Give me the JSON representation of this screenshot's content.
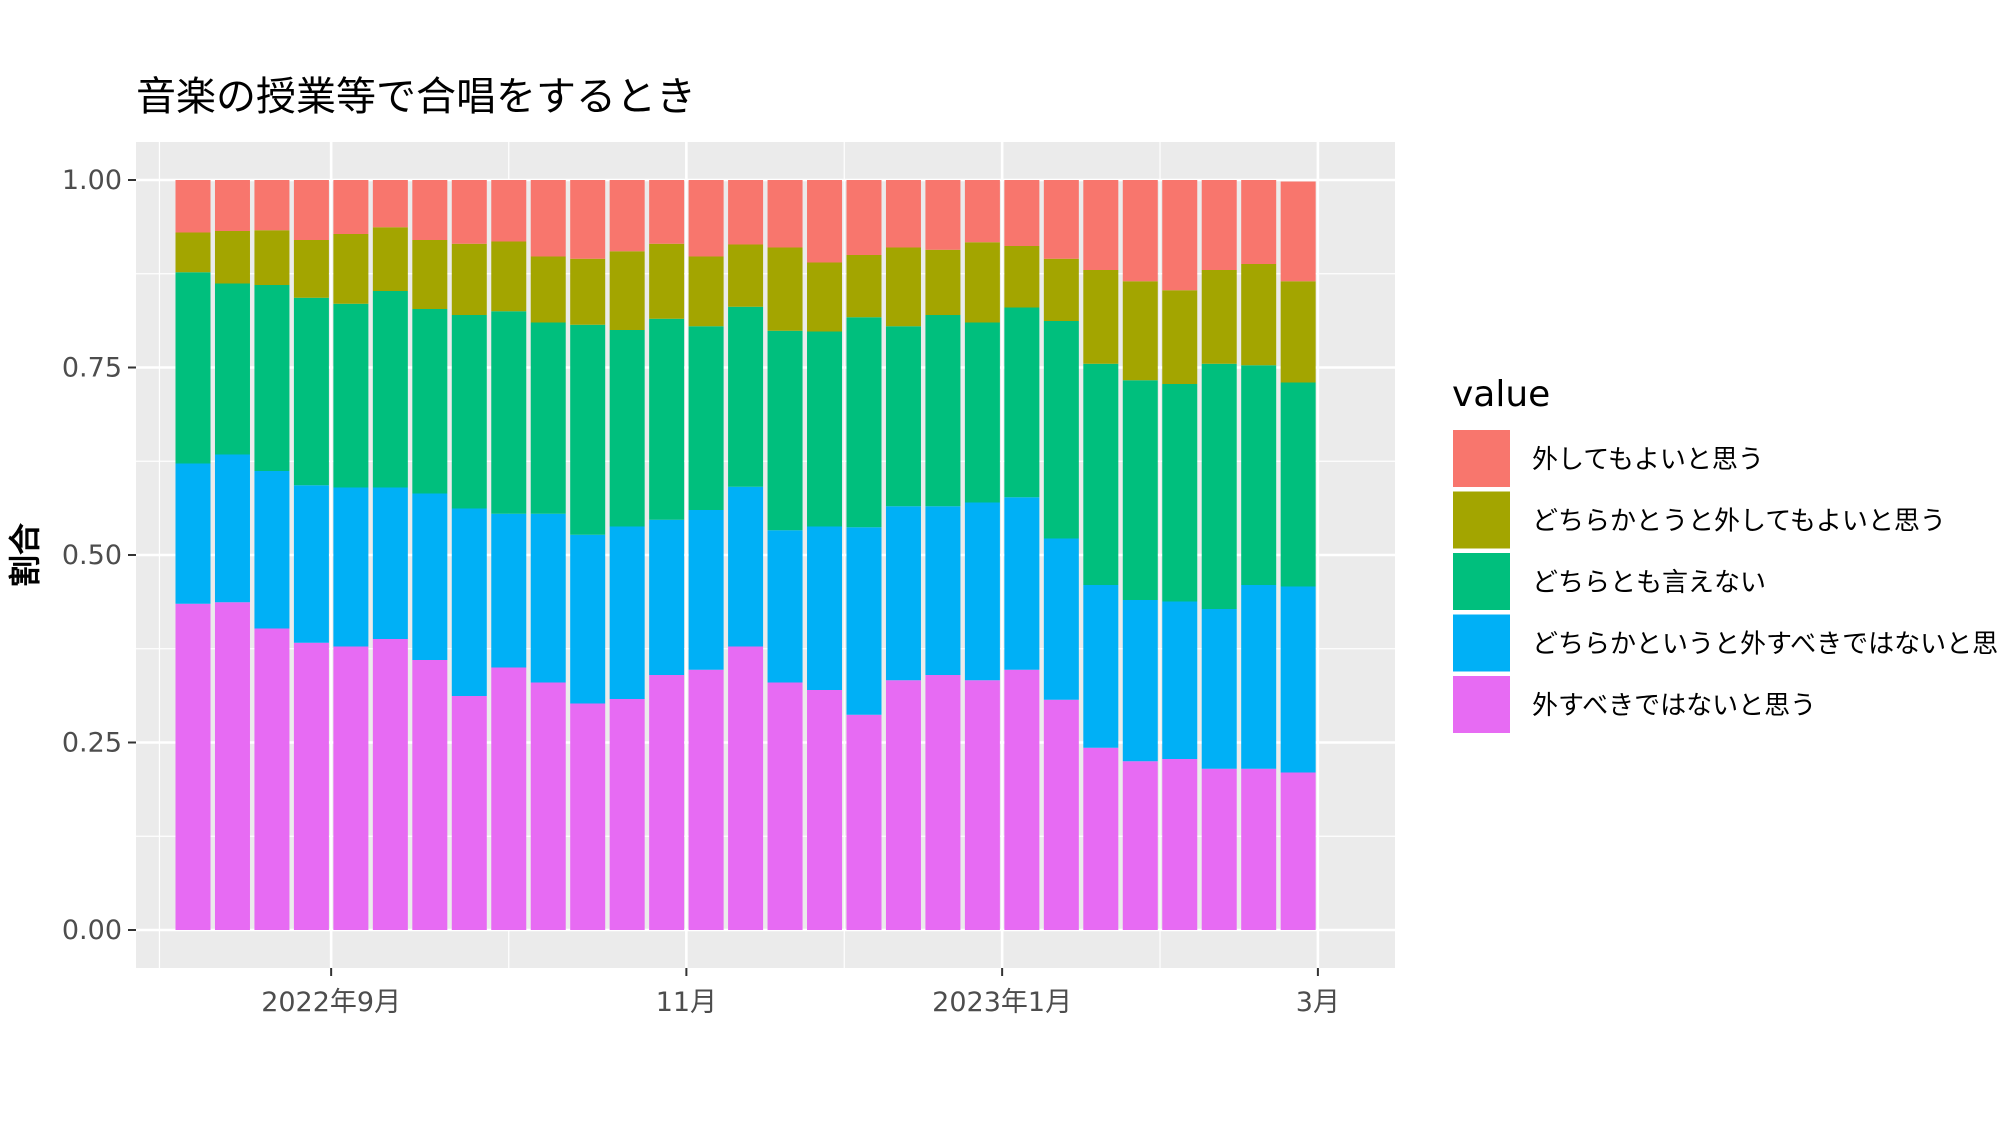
{
  "chart_data": {
    "type": "bar",
    "stacked": true,
    "title": "音楽の授業等で合唱をするとき",
    "xlabel": "",
    "ylabel": "割合",
    "ylim": [
      0,
      1
    ],
    "y_ticks": [
      "0.00",
      "0.25",
      "0.50",
      "0.75",
      "1.00"
    ],
    "x_tick_labels": [
      "2022年9月",
      "11月",
      "2023年1月",
      "3月"
    ],
    "x_tick_bar_index": [
      3.5,
      12.5,
      20.5,
      28.5
    ],
    "x_minor_bar_index": [
      -0.85,
      8,
      16.5,
      24.5
    ],
    "legend_title": "value",
    "legend_position": "right",
    "grid": true,
    "n_bars": 29,
    "series": [
      {
        "name": "外すべきではないと思う",
        "color": "#E76BF3",
        "values": [
          0.435,
          0.437,
          0.402,
          0.383,
          0.378,
          0.388,
          0.36,
          0.312,
          0.35,
          0.33,
          0.302,
          0.308,
          0.34,
          0.347,
          0.378,
          0.33,
          0.32,
          0.287,
          0.333,
          0.34,
          0.333,
          0.347,
          0.307,
          0.243,
          0.225,
          0.228,
          0.215,
          0.215,
          0.21
        ]
      },
      {
        "name": "どちらかというと外すべきではないと思う",
        "color": "#00B0F6",
        "values": [
          0.187,
          0.197,
          0.21,
          0.21,
          0.212,
          0.202,
          0.222,
          0.25,
          0.205,
          0.225,
          0.225,
          0.23,
          0.207,
          0.213,
          0.213,
          0.203,
          0.218,
          0.25,
          0.232,
          0.225,
          0.237,
          0.23,
          0.215,
          0.217,
          0.215,
          0.21,
          0.213,
          0.245,
          0.248
        ]
      },
      {
        "name": "どちらとも言えない",
        "color": "#00BF7D",
        "values": [
          0.255,
          0.228,
          0.248,
          0.25,
          0.245,
          0.262,
          0.246,
          0.258,
          0.27,
          0.255,
          0.28,
          0.262,
          0.268,
          0.245,
          0.24,
          0.266,
          0.26,
          0.28,
          0.24,
          0.255,
          0.24,
          0.253,
          0.29,
          0.295,
          0.293,
          0.29,
          0.327,
          0.293,
          0.272
        ]
      },
      {
        "name": "どちらかとうと外してもよいと思う",
        "color": "#A3A500",
        "values": [
          0.053,
          0.07,
          0.073,
          0.077,
          0.093,
          0.085,
          0.092,
          0.095,
          0.093,
          0.088,
          0.088,
          0.105,
          0.1,
          0.093,
          0.083,
          0.111,
          0.092,
          0.083,
          0.105,
          0.087,
          0.107,
          0.082,
          0.083,
          0.125,
          0.132,
          0.125,
          0.125,
          0.135,
          0.135
        ]
      },
      {
        "name": "外してもよいと思う",
        "color": "#F8766D",
        "values": [
          0.07,
          0.068,
          0.067,
          0.08,
          0.072,
          0.063,
          0.08,
          0.085,
          0.082,
          0.102,
          0.105,
          0.095,
          0.085,
          0.102,
          0.086,
          0.09,
          0.11,
          0.1,
          0.09,
          0.093,
          0.083,
          0.088,
          0.105,
          0.12,
          0.135,
          0.147,
          0.12,
          0.112,
          0.133
        ]
      }
    ]
  }
}
